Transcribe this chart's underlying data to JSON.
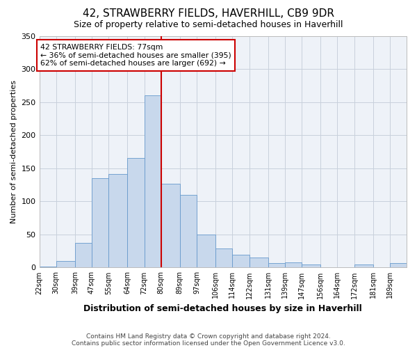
{
  "title": "42, STRAWBERRY FIELDS, HAVERHILL, CB9 9DR",
  "subtitle": "Size of property relative to semi-detached houses in Haverhill",
  "xlabel": "Distribution of semi-detached houses by size in Haverhill",
  "ylabel": "Number of semi-detached properties",
  "footer_line1": "Contains HM Land Registry data © Crown copyright and database right 2024.",
  "footer_line2": "Contains public sector information licensed under the Open Government Licence v3.0.",
  "annotation_title": "42 STRAWBERRY FIELDS: 77sqm",
  "annotation_line1": "← 36% of semi-detached houses are smaller (395)",
  "annotation_line2": "62% of semi-detached houses are larger (692) →",
  "bar_color": "#c8d8ec",
  "bar_edge_color": "#6699cc",
  "grid_color": "#c8d0dc",
  "background_color": "#ffffff",
  "plot_bg_color": "#eef2f8",
  "vline_x": 80,
  "vline_color": "#cc0000",
  "categories": [
    "22sqm",
    "30sqm",
    "39sqm",
    "47sqm",
    "55sqm",
    "64sqm",
    "72sqm",
    "80sqm",
    "89sqm",
    "97sqm",
    "106sqm",
    "114sqm",
    "122sqm",
    "131sqm",
    "139sqm",
    "147sqm",
    "156sqm",
    "164sqm",
    "172sqm",
    "181sqm",
    "189sqm"
  ],
  "values": [
    2,
    10,
    37,
    135,
    141,
    165,
    260,
    127,
    110,
    50,
    29,
    19,
    15,
    7,
    8,
    5,
    0,
    0,
    5,
    0,
    7
  ],
  "bin_edges": [
    22,
    30,
    39,
    47,
    55,
    64,
    72,
    80,
    89,
    97,
    106,
    114,
    122,
    131,
    139,
    147,
    156,
    164,
    172,
    181,
    189,
    197
  ],
  "ylim": [
    0,
    350
  ],
  "yticks": [
    0,
    50,
    100,
    150,
    200,
    250,
    300,
    350
  ],
  "annotation_box_color": "#ffffff",
  "annotation_box_edge": "#cc0000",
  "title_fontsize": 11,
  "subtitle_fontsize": 9
}
